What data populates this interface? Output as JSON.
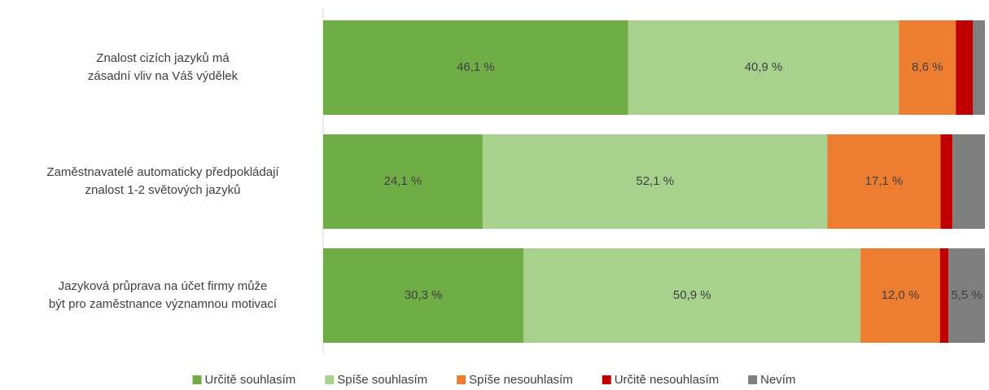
{
  "chart_data": {
    "type": "stacked-bar-horizontal",
    "categories": [
      "Znalost cizích jazyků má\nzásadní vliv na Váš výdělek",
      "Zaměstnavatelé automaticky předpokládají\nznalost 1-2 světových jazyků",
      "Jazyková průprava na účet firmy může\nbýt pro zaměstnance významnou motivací"
    ],
    "series": [
      {
        "name": "Určitě souhlasím",
        "color": "#70ad47",
        "values": [
          46.1,
          24.1,
          30.3
        ],
        "value_labels": [
          "46,1 %",
          "24,1 %",
          "30,3 %"
        ]
      },
      {
        "name": "Spíše souhlasím",
        "color": "#a9d18e",
        "values": [
          40.9,
          52.1,
          50.9
        ],
        "value_labels": [
          "40,9 %",
          "52,1 %",
          "50,9 %"
        ]
      },
      {
        "name": "Spíše nesouhlasím",
        "color": "#ed7d31",
        "values": [
          8.6,
          17.1,
          12.0
        ],
        "value_labels": [
          "8,6 %",
          "17,1 %",
          "12,0 %"
        ]
      },
      {
        "name": "Určitě nesouhlasím",
        "color": "#c00000",
        "values": [
          2.6,
          1.8,
          1.3
        ]
      },
      {
        "name": "Nevím",
        "color": "#7f7f7f",
        "values": [
          1.8,
          4.9,
          5.5
        ],
        "value_labels": [
          null,
          null,
          "5,5 %"
        ]
      }
    ],
    "xlim": [
      0,
      100
    ],
    "legend": "bottom"
  }
}
